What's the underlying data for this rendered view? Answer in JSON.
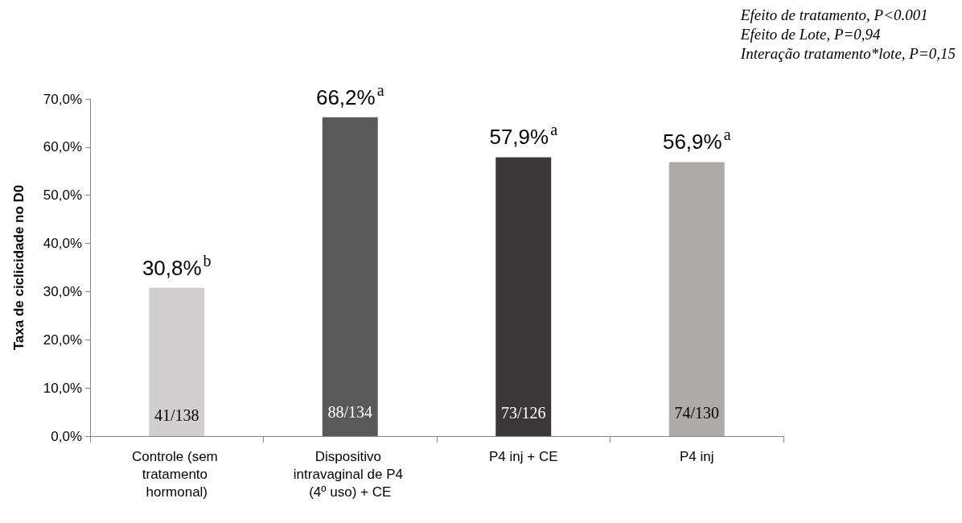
{
  "chart_data": {
    "type": "bar",
    "categories": [
      "Controle (sem tratamento hormonal)",
      "Dispositivo intravaginal de P4 (4º uso) + CE",
      "P4 inj + CE",
      "P4 inj"
    ],
    "values": [
      30.8,
      66.2,
      57.9,
      56.9
    ],
    "colors": [
      "#d0cece",
      "#595959",
      "#3a3838",
      "#aeaaaa"
    ],
    "value_labels": [
      "30,8%$^{b}$",
      "66,2%$^{a}$",
      "57,9%$^{a}$",
      "56,9%$^{a}$"
    ],
    "ylabel": "Taxa de ciclicidade no D0",
    "ylim": [
      0,
      70
    ],
    "yticks": [
      {
        "value": 0,
        "label": "0,0%"
      },
      {
        "value": 10,
        "label": "10,0%"
      },
      {
        "value": 20,
        "label": "20,0%"
      },
      {
        "value": 30,
        "label": "30,0%"
      },
      {
        "value": 40,
        "label": "40,0%"
      },
      {
        "value": 50,
        "label": "50,0%"
      },
      {
        "value": 60,
        "label": "60,0%"
      },
      {
        "value": 70,
        "label": "70,0%"
      }
    ],
    "grid": false,
    "annotations": [
      "Efeito de tratamento, P<0.001",
      "Efeito de Lote, P=0,94",
      "Interação tratamento*lote, P=0,15",
      "41/138",
      "88/134",
      "73/126",
      "74/130"
    ]
  }
}
